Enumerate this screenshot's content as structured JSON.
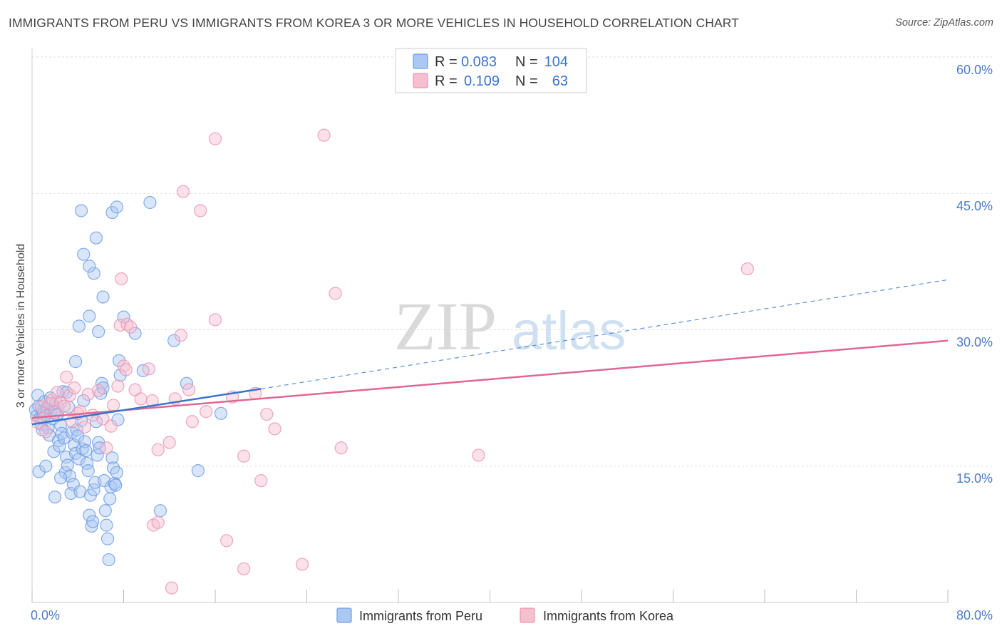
{
  "header": {
    "title": "IMMIGRANTS FROM PERU VS IMMIGRANTS FROM KOREA 3 OR MORE VEHICLES IN HOUSEHOLD CORRELATION CHART",
    "source": "Source: ZipAtlas.com"
  },
  "watermark": {
    "zip": "ZIP",
    "atlas": "atlas"
  },
  "colors": {
    "peru_fill": "#aac8f2",
    "peru_stroke": "#6f9ee6",
    "peru_line": "#3a74d0",
    "korea_fill": "#f6bfd0",
    "korea_stroke": "#ec95b2",
    "korea_line": "#e0678f",
    "axis_text": "#4a7ccc",
    "grid": "#dddddd"
  },
  "legend": {
    "peru": {
      "r_label": "R =",
      "r_value": "0.083",
      "n_label": "N =",
      "n_value": "104"
    },
    "korea": {
      "r_label": "R =",
      "r_value": "0.109",
      "n_label": "N =",
      "n_value": "63"
    }
  },
  "chart_data": {
    "type": "scatter",
    "title": "IMMIGRANTS FROM PERU VS IMMIGRANTS FROM KOREA 3 OR MORE VEHICLES IN HOUSEHOLD CORRELATION CHART",
    "xlabel": "",
    "ylabel": "3 or more Vehicles in Household",
    "xlim": [
      0,
      80
    ],
    "ylim": [
      0,
      60
    ],
    "x_tick_labels": [
      "0.0%",
      "80.0%"
    ],
    "y_ticks": [
      15,
      30,
      45,
      60
    ],
    "y_tick_labels": [
      "15.0%",
      "30.0%",
      "45.0%",
      "60.0%"
    ],
    "grid": true,
    "legend_position": "top-center",
    "series": [
      {
        "name": "Immigrants from Peru",
        "R": 0.083,
        "N": 104,
        "trend": {
          "x": [
            0,
            20
          ],
          "y": [
            19.6,
            23.5
          ],
          "dashed_extension": {
            "x": [
              20,
              80
            ],
            "y": [
              23.5,
              35.5
            ]
          }
        },
        "points": [
          [
            0.3,
            21.2
          ],
          [
            0.4,
            20.5
          ],
          [
            0.5,
            22.8
          ],
          [
            0.6,
            21.6
          ],
          [
            0.7,
            20.3
          ],
          [
            0.8,
            19.6
          ],
          [
            0.9,
            21.0
          ],
          [
            1.0,
            20.8
          ],
          [
            1.1,
            22.1
          ],
          [
            1.2,
            20.6
          ],
          [
            1.3,
            21.4
          ],
          [
            1.4,
            19.2
          ],
          [
            1.5,
            18.4
          ],
          [
            1.6,
            20.9
          ],
          [
            1.7,
            21.8
          ],
          [
            1.8,
            20.2
          ],
          [
            1.9,
            16.6
          ],
          [
            2.0,
            21.3
          ],
          [
            2.1,
            22.0
          ],
          [
            2.2,
            20.7
          ],
          [
            2.3,
            17.8
          ],
          [
            2.4,
            17.2
          ],
          [
            2.5,
            19.5
          ],
          [
            2.6,
            18.6
          ],
          [
            2.7,
            23.2
          ],
          [
            2.8,
            18.1
          ],
          [
            2.9,
            14.3
          ],
          [
            3.0,
            16.0
          ],
          [
            3.1,
            15.1
          ],
          [
            3.2,
            21.5
          ],
          [
            3.3,
            13.9
          ],
          [
            3.4,
            12.0
          ],
          [
            3.5,
            18.7
          ],
          [
            3.6,
            13.0
          ],
          [
            3.7,
            17.3
          ],
          [
            3.8,
            16.4
          ],
          [
            3.9,
            19.0
          ],
          [
            4.0,
            18.3
          ],
          [
            4.1,
            15.8
          ],
          [
            4.2,
            12.2
          ],
          [
            4.3,
            20.0
          ],
          [
            4.4,
            16.9
          ],
          [
            4.5,
            22.2
          ],
          [
            4.6,
            17.7
          ],
          [
            4.7,
            16.7
          ],
          [
            4.8,
            15.3
          ],
          [
            4.9,
            14.5
          ],
          [
            5.0,
            9.6
          ],
          [
            5.1,
            11.8
          ],
          [
            5.2,
            8.4
          ],
          [
            5.3,
            8.9
          ],
          [
            5.4,
            12.4
          ],
          [
            5.5,
            13.2
          ],
          [
            5.6,
            19.9
          ],
          [
            5.7,
            16.2
          ],
          [
            5.8,
            17.6
          ],
          [
            5.9,
            17.0
          ],
          [
            6.0,
            23.0
          ],
          [
            6.1,
            24.1
          ],
          [
            6.2,
            23.6
          ],
          [
            6.3,
            13.4
          ],
          [
            6.4,
            10.1
          ],
          [
            6.5,
            8.5
          ],
          [
            6.6,
            7.0
          ],
          [
            6.7,
            4.7
          ],
          [
            6.8,
            11.4
          ],
          [
            6.9,
            12.7
          ],
          [
            7.0,
            15.9
          ],
          [
            7.1,
            14.8
          ],
          [
            7.2,
            13.1
          ],
          [
            7.3,
            12.9
          ],
          [
            7.4,
            14.3
          ],
          [
            7.5,
            20.1
          ],
          [
            7.6,
            26.6
          ],
          [
            7.7,
            25.0
          ],
          [
            8.0,
            31.4
          ],
          [
            9.0,
            29.6
          ],
          [
            3.8,
            26.5
          ],
          [
            4.1,
            30.4
          ],
          [
            5.8,
            29.8
          ],
          [
            5.0,
            31.5
          ],
          [
            6.2,
            33.6
          ],
          [
            5.4,
            36.2
          ],
          [
            5.0,
            37.0
          ],
          [
            4.5,
            38.3
          ],
          [
            5.6,
            40.1
          ],
          [
            4.3,
            43.1
          ],
          [
            7.0,
            42.9
          ],
          [
            7.4,
            43.5
          ],
          [
            10.3,
            44.0
          ],
          [
            12.4,
            28.8
          ],
          [
            13.5,
            24.1
          ],
          [
            16.5,
            20.8
          ],
          [
            14.5,
            14.5
          ],
          [
            11.2,
            10.1
          ],
          [
            0.6,
            14.4
          ],
          [
            1.2,
            15.0
          ],
          [
            2.0,
            11.6
          ],
          [
            2.5,
            13.7
          ],
          [
            0.9,
            19.0
          ],
          [
            1.6,
            22.5
          ],
          [
            2.2,
            20.6
          ],
          [
            3.0,
            23.1
          ],
          [
            9.7,
            25.5
          ]
        ]
      },
      {
        "name": "Immigrants from Korea",
        "R": 0.109,
        "N": 63,
        "trend": {
          "x": [
            0,
            80
          ],
          "y": [
            20.3,
            28.8
          ]
        },
        "points": [
          [
            0.5,
            19.8
          ],
          [
            0.8,
            21.5
          ],
          [
            1.0,
            20.3
          ],
          [
            1.2,
            18.8
          ],
          [
            1.5,
            21.9
          ],
          [
            1.8,
            22.3
          ],
          [
            2.0,
            20.9
          ],
          [
            2.2,
            23.1
          ],
          [
            2.5,
            22.0
          ],
          [
            2.8,
            21.6
          ],
          [
            3.0,
            24.8
          ],
          [
            3.3,
            22.8
          ],
          [
            3.5,
            19.9
          ],
          [
            3.7,
            23.6
          ],
          [
            4.0,
            20.8
          ],
          [
            4.2,
            21.0
          ],
          [
            4.6,
            19.3
          ],
          [
            4.9,
            22.9
          ],
          [
            5.3,
            20.6
          ],
          [
            5.8,
            23.3
          ],
          [
            6.2,
            20.2
          ],
          [
            6.5,
            17.0
          ],
          [
            6.9,
            19.4
          ],
          [
            7.1,
            21.7
          ],
          [
            7.5,
            23.8
          ],
          [
            8.0,
            26.0
          ],
          [
            8.2,
            25.6
          ],
          [
            7.7,
            30.5
          ],
          [
            8.3,
            30.6
          ],
          [
            8.6,
            30.3
          ],
          [
            9.0,
            23.4
          ],
          [
            9.5,
            22.4
          ],
          [
            10.2,
            25.7
          ],
          [
            10.5,
            22.2
          ],
          [
            11.0,
            16.8
          ],
          [
            12.0,
            17.6
          ],
          [
            12.5,
            22.4
          ],
          [
            13.0,
            29.4
          ],
          [
            13.7,
            23.4
          ],
          [
            14.0,
            19.9
          ],
          [
            15.2,
            21.0
          ],
          [
            16.0,
            31.1
          ],
          [
            17.5,
            22.6
          ],
          [
            18.5,
            16.1
          ],
          [
            19.5,
            23.0
          ],
          [
            20.0,
            13.4
          ],
          [
            20.5,
            20.7
          ],
          [
            21.2,
            19.1
          ],
          [
            26.5,
            34.0
          ],
          [
            27.0,
            17.0
          ],
          [
            39.0,
            16.2
          ],
          [
            62.5,
            36.7
          ],
          [
            16.0,
            51.0
          ],
          [
            25.5,
            51.4
          ],
          [
            13.2,
            45.2
          ],
          [
            14.7,
            43.1
          ],
          [
            7.8,
            35.6
          ],
          [
            10.6,
            8.5
          ],
          [
            11.0,
            8.8
          ],
          [
            12.2,
            1.6
          ],
          [
            17.0,
            6.8
          ],
          [
            18.5,
            3.7
          ],
          [
            23.6,
            4.2
          ]
        ]
      }
    ]
  },
  "bottom_legend": {
    "peru": "Immigrants from Peru",
    "korea": "Immigrants from Korea"
  }
}
